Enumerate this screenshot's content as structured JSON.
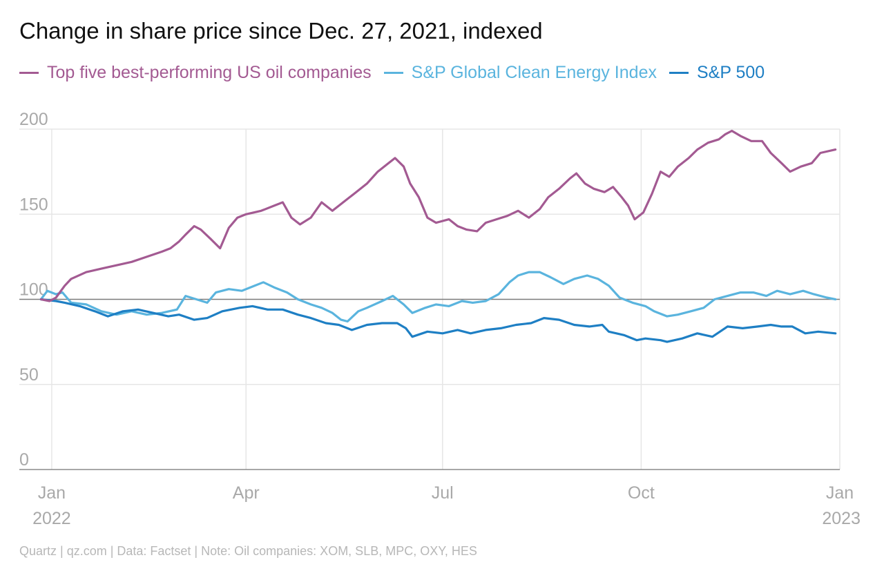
{
  "header": {
    "title": "Change in share price since Dec. 27, 2021, indexed"
  },
  "footer": {
    "source": "Quartz | qz.com | Data: Factset | Note: Oil companies: XOM, SLB, MPC, OXY, HES"
  },
  "chart_data": {
    "type": "line",
    "title": "Change in share price since Dec. 27, 2021, indexed",
    "xlabel": "",
    "ylabel": "",
    "ylim": [
      0,
      200
    ],
    "y_ticks": [
      "0",
      "50",
      "100",
      "150",
      "200"
    ],
    "x_ticks": [
      {
        "label": "Jan",
        "sub": "2022",
        "date": "2022-01-01"
      },
      {
        "label": "Apr",
        "sub": "",
        "date": "2022-04-01"
      },
      {
        "label": "Jul",
        "sub": "",
        "date": "2022-07-01"
      },
      {
        "label": "Oct",
        "sub": "",
        "date": "2022-10-01"
      },
      {
        "label": "Jan",
        "sub": "2023",
        "date": "2023-01-01"
      }
    ],
    "xlim": [
      "2021-12-17",
      "2023-01-01"
    ],
    "baseline": 100,
    "grid": true,
    "legend_position": "top-left",
    "series": [
      {
        "name": "Top five best-performing US oil companies",
        "color": "#a35a92",
        "points": [
          [
            "2021-12-27",
            100
          ],
          [
            "2021-12-31",
            99
          ],
          [
            "2022-01-03",
            101
          ],
          [
            "2022-01-07",
            108
          ],
          [
            "2022-01-10",
            112
          ],
          [
            "2022-01-17",
            116
          ],
          [
            "2022-01-24",
            118
          ],
          [
            "2022-01-31",
            120
          ],
          [
            "2022-02-07",
            122
          ],
          [
            "2022-02-14",
            125
          ],
          [
            "2022-02-21",
            128
          ],
          [
            "2022-02-25",
            130
          ],
          [
            "2022-03-01",
            134
          ],
          [
            "2022-03-04",
            138
          ],
          [
            "2022-03-08",
            143
          ],
          [
            "2022-03-11",
            141
          ],
          [
            "2022-03-16",
            135
          ],
          [
            "2022-03-20",
            130
          ],
          [
            "2022-03-24",
            142
          ],
          [
            "2022-03-28",
            148
          ],
          [
            "2022-04-01",
            150
          ],
          [
            "2022-04-08",
            152
          ],
          [
            "2022-04-14",
            155
          ],
          [
            "2022-04-18",
            157
          ],
          [
            "2022-04-22",
            148
          ],
          [
            "2022-04-26",
            144
          ],
          [
            "2022-05-01",
            148
          ],
          [
            "2022-05-06",
            157
          ],
          [
            "2022-05-11",
            152
          ],
          [
            "2022-05-16",
            157
          ],
          [
            "2022-05-21",
            162
          ],
          [
            "2022-05-27",
            168
          ],
          [
            "2022-06-01",
            175
          ],
          [
            "2022-06-06",
            180
          ],
          [
            "2022-06-09",
            183
          ],
          [
            "2022-06-13",
            178
          ],
          [
            "2022-06-16",
            168
          ],
          [
            "2022-06-20",
            160
          ],
          [
            "2022-06-24",
            148
          ],
          [
            "2022-06-28",
            145
          ],
          [
            "2022-07-04",
            147
          ],
          [
            "2022-07-08",
            143
          ],
          [
            "2022-07-12",
            141
          ],
          [
            "2022-07-17",
            140
          ],
          [
            "2022-07-21",
            145
          ],
          [
            "2022-07-26",
            147
          ],
          [
            "2022-07-31",
            149
          ],
          [
            "2022-08-05",
            152
          ],
          [
            "2022-08-10",
            148
          ],
          [
            "2022-08-15",
            153
          ],
          [
            "2022-08-19",
            160
          ],
          [
            "2022-08-24",
            165
          ],
          [
            "2022-08-29",
            171
          ],
          [
            "2022-09-01",
            174
          ],
          [
            "2022-09-05",
            168
          ],
          [
            "2022-09-09",
            165
          ],
          [
            "2022-09-14",
            163
          ],
          [
            "2022-09-18",
            166
          ],
          [
            "2022-09-22",
            160
          ],
          [
            "2022-09-25",
            155
          ],
          [
            "2022-09-28",
            147
          ],
          [
            "2022-10-02",
            151
          ],
          [
            "2022-10-06",
            162
          ],
          [
            "2022-10-10",
            175
          ],
          [
            "2022-10-14",
            172
          ],
          [
            "2022-10-18",
            178
          ],
          [
            "2022-10-23",
            183
          ],
          [
            "2022-10-27",
            188
          ],
          [
            "2022-11-01",
            192
          ],
          [
            "2022-11-06",
            194
          ],
          [
            "2022-11-09",
            197
          ],
          [
            "2022-11-12",
            199
          ],
          [
            "2022-11-16",
            196
          ],
          [
            "2022-11-21",
            193
          ],
          [
            "2022-11-26",
            193
          ],
          [
            "2022-11-30",
            186
          ],
          [
            "2022-12-05",
            180
          ],
          [
            "2022-12-09",
            175
          ],
          [
            "2022-12-14",
            178
          ],
          [
            "2022-12-19",
            180
          ],
          [
            "2022-12-23",
            186
          ],
          [
            "2022-12-30",
            188
          ]
        ]
      },
      {
        "name": "S&P Global Clean Energy Index",
        "color": "#5ab4de",
        "points": [
          [
            "2021-12-27",
            100
          ],
          [
            "2021-12-30",
            105
          ],
          [
            "2022-01-03",
            103
          ],
          [
            "2022-01-06",
            104
          ],
          [
            "2022-01-10",
            98
          ],
          [
            "2022-01-17",
            97
          ],
          [
            "2022-01-24",
            93
          ],
          [
            "2022-01-31",
            91
          ],
          [
            "2022-02-07",
            93
          ],
          [
            "2022-02-14",
            91
          ],
          [
            "2022-02-21",
            92
          ],
          [
            "2022-02-28",
            94
          ],
          [
            "2022-03-04",
            102
          ],
          [
            "2022-03-09",
            100
          ],
          [
            "2022-03-14",
            98
          ],
          [
            "2022-03-18",
            104
          ],
          [
            "2022-03-24",
            106
          ],
          [
            "2022-03-30",
            105
          ],
          [
            "2022-04-05",
            108
          ],
          [
            "2022-04-09",
            110
          ],
          [
            "2022-04-14",
            107
          ],
          [
            "2022-04-20",
            104
          ],
          [
            "2022-04-25",
            100
          ],
          [
            "2022-05-01",
            97
          ],
          [
            "2022-05-06",
            95
          ],
          [
            "2022-05-11",
            92
          ],
          [
            "2022-05-15",
            88
          ],
          [
            "2022-05-18",
            87
          ],
          [
            "2022-05-23",
            93
          ],
          [
            "2022-05-27",
            95
          ],
          [
            "2022-06-03",
            99
          ],
          [
            "2022-06-08",
            102
          ],
          [
            "2022-06-13",
            97
          ],
          [
            "2022-06-17",
            92
          ],
          [
            "2022-06-23",
            95
          ],
          [
            "2022-06-28",
            97
          ],
          [
            "2022-07-04",
            96
          ],
          [
            "2022-07-10",
            99
          ],
          [
            "2022-07-15",
            98
          ],
          [
            "2022-07-21",
            99
          ],
          [
            "2022-07-27",
            103
          ],
          [
            "2022-08-01",
            110
          ],
          [
            "2022-08-05",
            114
          ],
          [
            "2022-08-10",
            116
          ],
          [
            "2022-08-15",
            116
          ],
          [
            "2022-08-20",
            113
          ],
          [
            "2022-08-26",
            109
          ],
          [
            "2022-08-31",
            112
          ],
          [
            "2022-09-06",
            114
          ],
          [
            "2022-09-11",
            112
          ],
          [
            "2022-09-16",
            108
          ],
          [
            "2022-09-21",
            101
          ],
          [
            "2022-09-27",
            98
          ],
          [
            "2022-10-03",
            96
          ],
          [
            "2022-10-07",
            93
          ],
          [
            "2022-10-13",
            90
          ],
          [
            "2022-10-18",
            91
          ],
          [
            "2022-10-24",
            93
          ],
          [
            "2022-10-30",
            95
          ],
          [
            "2022-11-04",
            100
          ],
          [
            "2022-11-10",
            102
          ],
          [
            "2022-11-16",
            104
          ],
          [
            "2022-11-22",
            104
          ],
          [
            "2022-11-28",
            102
          ],
          [
            "2022-12-03",
            105
          ],
          [
            "2022-12-09",
            103
          ],
          [
            "2022-12-15",
            105
          ],
          [
            "2022-12-20",
            103
          ],
          [
            "2022-12-26",
            101
          ],
          [
            "2022-12-30",
            100
          ]
        ]
      },
      {
        "name": "S&P 500",
        "color": "#1e7fc4",
        "points": [
          [
            "2021-12-27",
            100
          ],
          [
            "2022-01-03",
            99
          ],
          [
            "2022-01-07",
            98
          ],
          [
            "2022-01-14",
            96
          ],
          [
            "2022-01-21",
            93
          ],
          [
            "2022-01-27",
            90
          ],
          [
            "2022-02-03",
            93
          ],
          [
            "2022-02-10",
            94
          ],
          [
            "2022-02-17",
            92
          ],
          [
            "2022-02-24",
            90
          ],
          [
            "2022-03-01",
            91
          ],
          [
            "2022-03-08",
            88
          ],
          [
            "2022-03-14",
            89
          ],
          [
            "2022-03-21",
            93
          ],
          [
            "2022-03-29",
            95
          ],
          [
            "2022-04-04",
            96
          ],
          [
            "2022-04-11",
            94
          ],
          [
            "2022-04-18",
            94
          ],
          [
            "2022-04-25",
            91
          ],
          [
            "2022-05-01",
            89
          ],
          [
            "2022-05-08",
            86
          ],
          [
            "2022-05-14",
            85
          ],
          [
            "2022-05-20",
            82
          ],
          [
            "2022-05-27",
            85
          ],
          [
            "2022-06-03",
            86
          ],
          [
            "2022-06-10",
            86
          ],
          [
            "2022-06-14",
            83
          ],
          [
            "2022-06-17",
            78
          ],
          [
            "2022-06-24",
            81
          ],
          [
            "2022-07-01",
            80
          ],
          [
            "2022-07-08",
            82
          ],
          [
            "2022-07-14",
            80
          ],
          [
            "2022-07-21",
            82
          ],
          [
            "2022-07-28",
            83
          ],
          [
            "2022-08-04",
            85
          ],
          [
            "2022-08-11",
            86
          ],
          [
            "2022-08-17",
            89
          ],
          [
            "2022-08-24",
            88
          ],
          [
            "2022-08-31",
            85
          ],
          [
            "2022-09-07",
            84
          ],
          [
            "2022-09-13",
            85
          ],
          [
            "2022-09-16",
            81
          ],
          [
            "2022-09-23",
            79
          ],
          [
            "2022-09-29",
            76
          ],
          [
            "2022-10-03",
            77
          ],
          [
            "2022-10-10",
            76
          ],
          [
            "2022-10-13",
            75
          ],
          [
            "2022-10-20",
            77
          ],
          [
            "2022-10-27",
            80
          ],
          [
            "2022-11-03",
            78
          ],
          [
            "2022-11-10",
            84
          ],
          [
            "2022-11-17",
            83
          ],
          [
            "2022-11-24",
            84
          ],
          [
            "2022-11-30",
            85
          ],
          [
            "2022-12-05",
            84
          ],
          [
            "2022-12-10",
            84
          ],
          [
            "2022-12-16",
            80
          ],
          [
            "2022-12-22",
            81
          ],
          [
            "2022-12-30",
            80
          ]
        ]
      }
    ]
  }
}
